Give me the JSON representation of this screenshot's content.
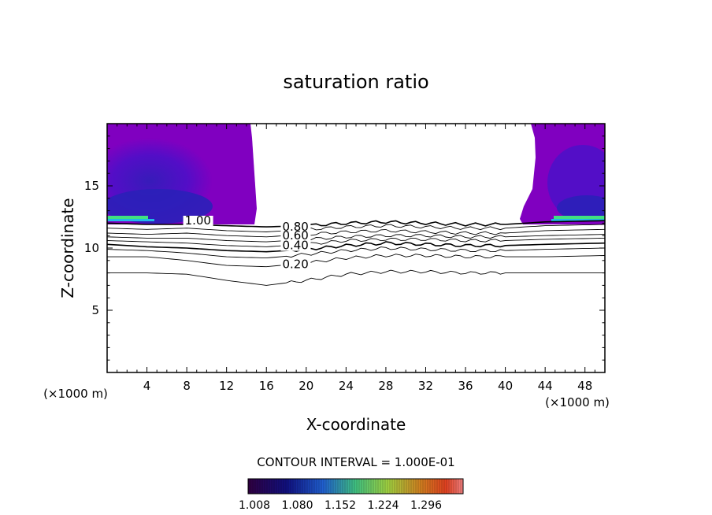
{
  "chart_data": {
    "type": "contour",
    "title": "saturation ratio",
    "xlabel": "X-coordinate",
    "ylabel": "Z-coordinate",
    "x_unit": "(×1000 m)",
    "x_unit_right": "(×1000 m)",
    "xlim": [
      0,
      50
    ],
    "ylim": [
      0,
      20
    ],
    "x_ticks": [
      4,
      8,
      12,
      16,
      20,
      24,
      28,
      32,
      36,
      40,
      44,
      48
    ],
    "y_ticks": [
      5,
      10,
      15
    ],
    "contour_interval_label": "CONTOUR INTERVAL = 1.000E-01",
    "colorbar_ticks": [
      "1.008",
      "1.080",
      "1.152",
      "1.224",
      "1.296"
    ],
    "contour_labels": [
      {
        "text": "1.00",
        "x": 7.8,
        "z": 11.9
      },
      {
        "text": "0.80",
        "x": 17.6,
        "z": 11.4
      },
      {
        "text": "0.60",
        "x": 17.6,
        "z": 10.7
      },
      {
        "text": "0.40",
        "x": 17.6,
        "z": 9.9
      },
      {
        "text": "0.20",
        "x": 17.6,
        "z": 8.4
      }
    ],
    "contour_lines": [
      {
        "level": 1.0,
        "points": [
          [
            0,
            12.0
          ],
          [
            4,
            11.9
          ],
          [
            8,
            11.9
          ],
          [
            12,
            11.8
          ],
          [
            16,
            11.7
          ],
          [
            20,
            11.8
          ],
          [
            24,
            12.0
          ],
          [
            28,
            12.1
          ],
          [
            32,
            12.0
          ],
          [
            36,
            11.9
          ],
          [
            40,
            11.9
          ],
          [
            44,
            12.1
          ],
          [
            50,
            12.2
          ]
        ]
      },
      {
        "level": 0.9,
        "points": [
          [
            0,
            11.6
          ],
          [
            4,
            11.5
          ],
          [
            8,
            11.6
          ],
          [
            12,
            11.4
          ],
          [
            16,
            11.3
          ],
          [
            20,
            11.5
          ],
          [
            24,
            11.7
          ],
          [
            28,
            11.8
          ],
          [
            32,
            11.7
          ],
          [
            36,
            11.6
          ],
          [
            40,
            11.6
          ],
          [
            44,
            11.8
          ],
          [
            50,
            11.9
          ]
        ]
      },
      {
        "level": 0.8,
        "points": [
          [
            0,
            11.2
          ],
          [
            4,
            11.1
          ],
          [
            8,
            11.2
          ],
          [
            12,
            11.0
          ],
          [
            16,
            10.9
          ],
          [
            20,
            11.1
          ],
          [
            24,
            11.3
          ],
          [
            28,
            11.4
          ],
          [
            32,
            11.3
          ],
          [
            36,
            11.2
          ],
          [
            40,
            11.2
          ],
          [
            44,
            11.4
          ],
          [
            50,
            11.5
          ]
        ]
      },
      {
        "level": 0.7,
        "points": [
          [
            0,
            10.9
          ],
          [
            4,
            10.8
          ],
          [
            8,
            10.8
          ],
          [
            12,
            10.6
          ],
          [
            16,
            10.5
          ],
          [
            20,
            10.7
          ],
          [
            24,
            10.9
          ],
          [
            28,
            11.0
          ],
          [
            32,
            11.0
          ],
          [
            36,
            10.9
          ],
          [
            40,
            10.9
          ],
          [
            44,
            11.0
          ],
          [
            50,
            11.1
          ]
        ]
      },
      {
        "level": 0.6,
        "points": [
          [
            0,
            10.6
          ],
          [
            4,
            10.5
          ],
          [
            8,
            10.4
          ],
          [
            12,
            10.2
          ],
          [
            16,
            10.1
          ],
          [
            20,
            10.3
          ],
          [
            24,
            10.6
          ],
          [
            28,
            10.7
          ],
          [
            32,
            10.7
          ],
          [
            36,
            10.6
          ],
          [
            40,
            10.6
          ],
          [
            44,
            10.7
          ],
          [
            50,
            10.8
          ]
        ]
      },
      {
        "level": 0.5,
        "points": [
          [
            0,
            10.3
          ],
          [
            4,
            10.1
          ],
          [
            8,
            10.0
          ],
          [
            12,
            9.8
          ],
          [
            16,
            9.7
          ],
          [
            20,
            9.9
          ],
          [
            24,
            10.2
          ],
          [
            28,
            10.4
          ],
          [
            32,
            10.3
          ],
          [
            36,
            10.2
          ],
          [
            40,
            10.2
          ],
          [
            44,
            10.3
          ],
          [
            50,
            10.4
          ]
        ]
      },
      {
        "level": 0.4,
        "points": [
          [
            0,
            9.9
          ],
          [
            4,
            9.8
          ],
          [
            8,
            9.6
          ],
          [
            12,
            9.3
          ],
          [
            16,
            9.2
          ],
          [
            20,
            9.5
          ],
          [
            24,
            9.8
          ],
          [
            28,
            10.0
          ],
          [
            32,
            9.9
          ],
          [
            36,
            9.8
          ],
          [
            40,
            9.8
          ],
          [
            44,
            9.9
          ],
          [
            50,
            10.0
          ]
        ]
      },
      {
        "level": 0.3,
        "points": [
          [
            0,
            9.3
          ],
          [
            4,
            9.3
          ],
          [
            8,
            9.0
          ],
          [
            12,
            8.6
          ],
          [
            16,
            8.5
          ],
          [
            20,
            8.8
          ],
          [
            24,
            9.2
          ],
          [
            28,
            9.4
          ],
          [
            32,
            9.4
          ],
          [
            36,
            9.3
          ],
          [
            40,
            9.3
          ],
          [
            44,
            9.3
          ],
          [
            50,
            9.4
          ]
        ]
      },
      {
        "level": 0.2,
        "points": [
          [
            0,
            8.0
          ],
          [
            4,
            8.0
          ],
          [
            8,
            7.9
          ],
          [
            12,
            7.4
          ],
          [
            16,
            7.0
          ],
          [
            20,
            7.4
          ],
          [
            24,
            7.9
          ],
          [
            28,
            8.1
          ],
          [
            32,
            8.1
          ],
          [
            36,
            8.0
          ],
          [
            40,
            8.0
          ],
          [
            44,
            8.0
          ],
          [
            50,
            8.0
          ]
        ]
      }
    ],
    "filled_regions": [
      {
        "name": "left",
        "x_range": [
          0,
          15.3
        ],
        "z_top": 20,
        "z_bottom": 11.8,
        "color": "#8000c0"
      },
      {
        "name": "right",
        "x_range": [
          42.7,
          50
        ],
        "z_top": 20,
        "z_bottom": 11.8,
        "color": "#8000c0"
      }
    ],
    "grid": false
  },
  "colors": {
    "fill_main": "#8000c0",
    "fill_deep": "#4b10c8",
    "fill_deeper": "#2a20b8",
    "band_green": "#40e080",
    "band_cyan": "#20b8e8"
  }
}
